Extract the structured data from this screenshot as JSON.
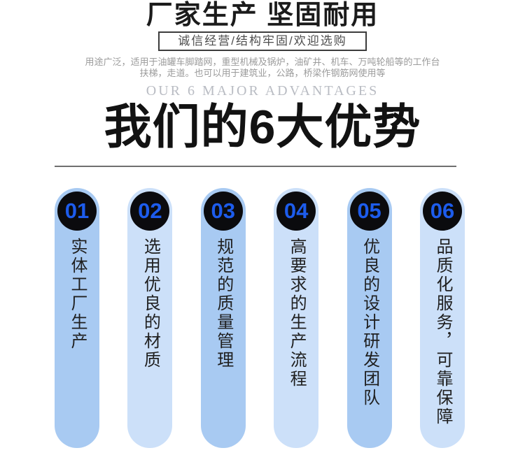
{
  "header": {
    "title": "厂家生产 坚固耐用",
    "subtitle": "诚信经营/结构牢固/欢迎选购",
    "description_line1": "用途广泛，适用于油罐车脚踏网，重型机械及锅炉，油矿井、机车、万吨轮船等的工作台",
    "description_line2": "扶梯，走道。也可以用于建筑业，公路，桥梁作钢筋网使用等"
  },
  "section": {
    "watermark": "OUR 6 MAJOR ADVANTAGES",
    "title": "我们的6大优势"
  },
  "advantages": [
    {
      "number": "01",
      "text": "实体工厂生产"
    },
    {
      "number": "02",
      "text": "选用优良的材质"
    },
    {
      "number": "03",
      "text": "规范的质量管理"
    },
    {
      "number": "04",
      "text": "高要求的生产流程"
    },
    {
      "number": "05",
      "text": "优良的设计研发团队"
    },
    {
      "number": "06",
      "text": "品质化服务，可靠保障"
    }
  ],
  "colors": {
    "pill_dark": "#a8caf2",
    "pill_light": "#cce0f9",
    "circle_black": "#0b0b0e",
    "number_blue": "#1d5cec"
  }
}
